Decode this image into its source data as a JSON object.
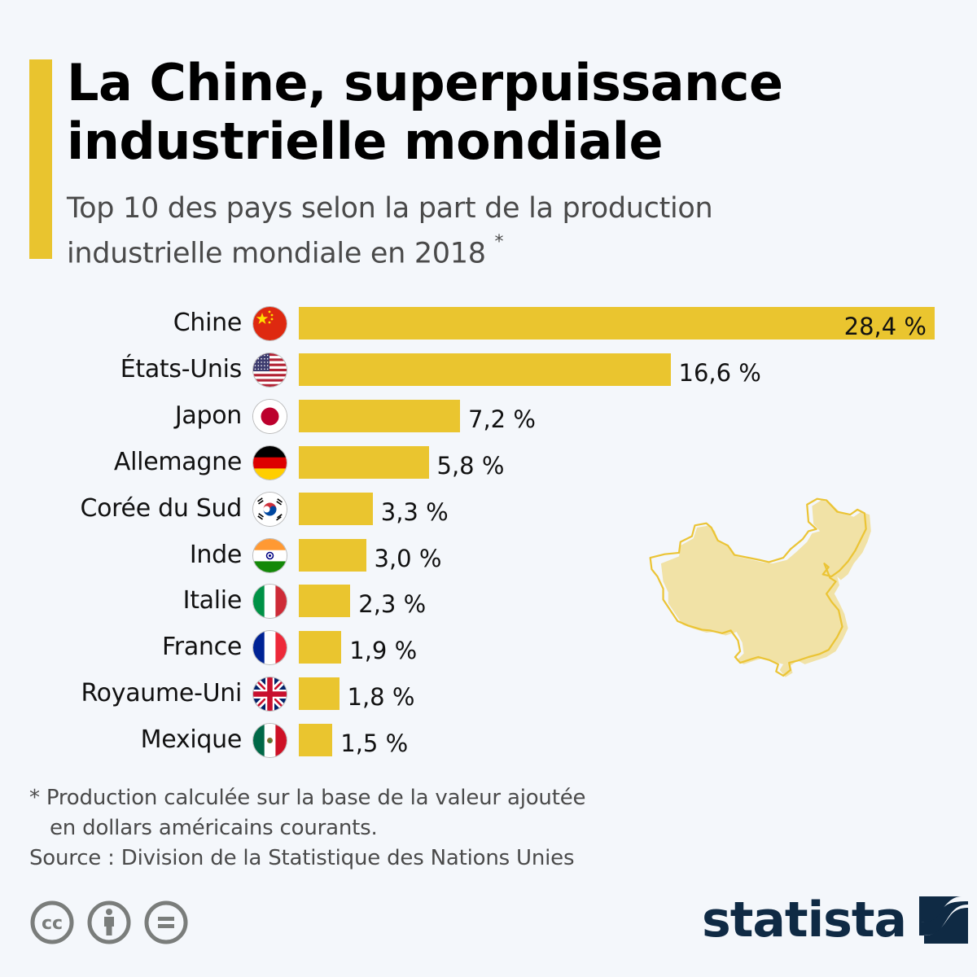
{
  "header": {
    "title_line1": "La Chine, superpuissance",
    "title_line2": "industrielle mondiale",
    "subtitle_line1": "Top 10 des pays selon la part de la production",
    "subtitle_line2": "industrielle mondiale en 2018",
    "subtitle_marker": "*"
  },
  "colors": {
    "accent": "#e9c42f",
    "bar": "#eac52f",
    "map_fill": "#f1e2a6",
    "map_outline": "#ebc435",
    "logo": "#0f2a44",
    "license_icons": "#7a7d7b"
  },
  "chart_data": {
    "type": "bar",
    "orientation": "horizontal",
    "title": "La Chine, superpuissance industrielle mondiale",
    "subtitle": "Top 10 des pays selon la part de la production industrielle mondiale en 2018 *",
    "xlabel": "",
    "ylabel": "",
    "unit": "%",
    "xlim": [
      0,
      28.4
    ],
    "grid": false,
    "categories": [
      "Chine",
      "États-Unis",
      "Japon",
      "Allemagne",
      "Corée du Sud",
      "Inde",
      "Italie",
      "France",
      "Royaume-Uni",
      "Mexique"
    ],
    "values": [
      28.4,
      16.6,
      7.2,
      5.8,
      3.3,
      3.0,
      2.3,
      1.9,
      1.8,
      1.5
    ],
    "value_labels": [
      "28,4 %",
      "16,6 %",
      "7,2 %",
      "5,8 %",
      "3,3 %",
      "3,0 %",
      "2,3 %",
      "1,9 %",
      "1,8 %",
      "1,5 %"
    ],
    "flags": [
      "china-flag",
      "usa-flag",
      "japan-flag",
      "germany-flag",
      "south-korea-flag",
      "india-flag",
      "italy-flag",
      "france-flag",
      "uk-flag",
      "mexico-flag"
    ]
  },
  "illustration": {
    "name": "china-map"
  },
  "footer": {
    "note_line1": "* Production calculée sur la base de la valeur ajoutée",
    "note_line2": "en dollars américains courants.",
    "source": "Source : Division de la Statistique des Nations Unies",
    "license_icons": [
      "cc-icon",
      "attribution-icon",
      "no-derivatives-icon"
    ],
    "logo_text": "statista"
  }
}
